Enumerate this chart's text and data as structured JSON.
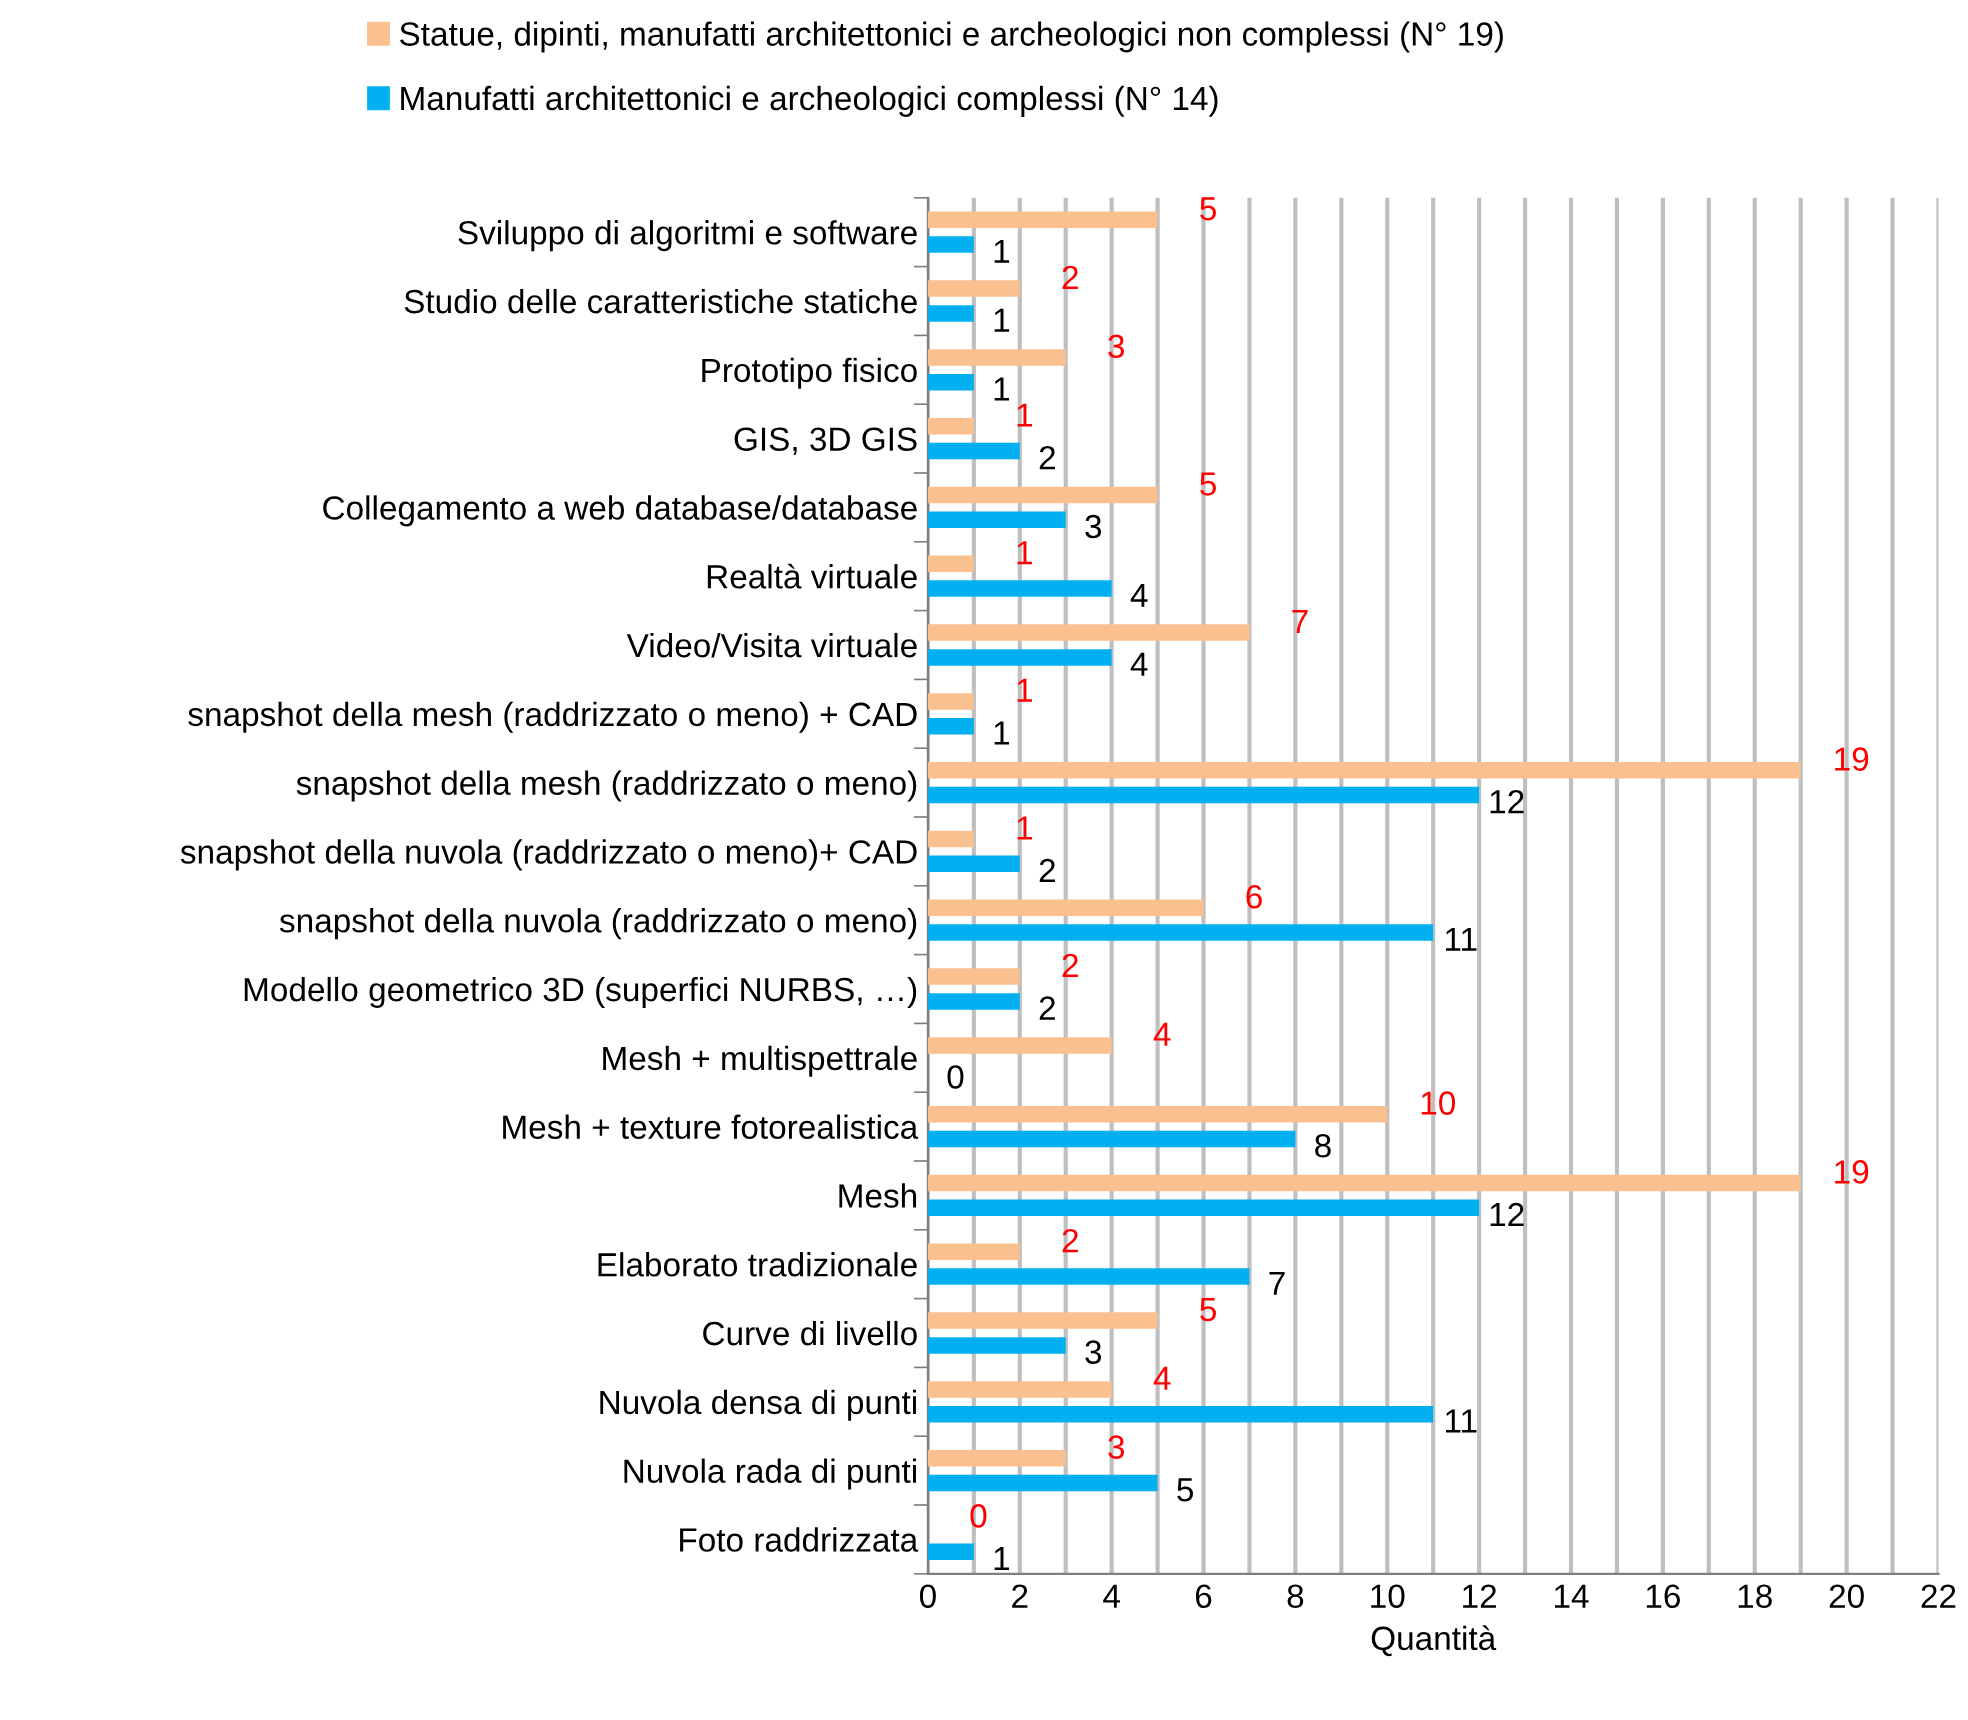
{
  "chart_data": {
    "type": "bar",
    "orientation": "horizontal",
    "xlabel": "Quantità",
    "categories": [
      "Sviluppo di algoritmi e software",
      "Studio delle caratteristiche statiche",
      "Prototipo fisico",
      "GIS, 3D GIS",
      "Collegamento a web database/database",
      "Realtà virtuale",
      "Video/Visita virtuale",
      "snapshot della mesh (raddrizzato o meno) + CAD",
      "snapshot della mesh (raddrizzato o meno)",
      "snapshot della nuvola (raddrizzato o meno)+ CAD",
      "snapshot della nuvola (raddrizzato o meno)",
      "Modello geometrico 3D (superfici NURBS, …)",
      "Mesh + multispettrale",
      "Mesh + texture fotorealistica",
      "Mesh",
      "Elaborato tradizionale",
      "Curve di livello",
      "Nuvola densa di punti",
      "Nuvola rada di punti",
      "Foto raddrizzata"
    ],
    "series": [
      {
        "name": "Statue, dipinti, manufatti architettonici e archeologici non complessi (N° 19)",
        "color": "#fac090",
        "values": [
          5,
          2,
          3,
          1,
          5,
          1,
          7,
          1,
          19,
          1,
          6,
          2,
          4,
          10,
          19,
          2,
          5,
          4,
          3,
          0
        ]
      },
      {
        "name": "Manufatti architettonici e archeologici complessi (N° 14)",
        "color": "#00b0f0",
        "values": [
          1,
          1,
          1,
          2,
          3,
          4,
          4,
          1,
          12,
          2,
          11,
          2,
          0,
          8,
          12,
          7,
          3,
          11,
          5,
          1
        ]
      }
    ],
    "xlim": [
      0,
      22
    ],
    "xticks": [
      0,
      {
        "value": 1,
        "label": null
      },
      2,
      {
        "value": 3,
        "label": null
      },
      4,
      {
        "value": 5,
        "label": null
      },
      6,
      {
        "value": 7,
        "label": null
      },
      8,
      {
        "value": 9,
        "label": null
      },
      10,
      {
        "value": 11,
        "label": null
      },
      12,
      {
        "value": 13,
        "label": null
      },
      14,
      {
        "value": 15,
        "label": null
      },
      16,
      {
        "value": 17,
        "label": null
      },
      18,
      {
        "value": 19,
        "label": null
      },
      20,
      {
        "value": 21,
        "label": null
      },
      22
    ],
    "grid": "x",
    "legend": "top left",
    "data_labels": true
  }
}
